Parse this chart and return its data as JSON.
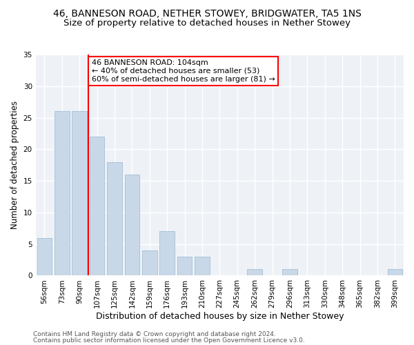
{
  "title1": "46, BANNESON ROAD, NETHER STOWEY, BRIDGWATER, TA5 1NS",
  "title2": "Size of property relative to detached houses in Nether Stowey",
  "xlabel": "Distribution of detached houses by size in Nether Stowey",
  "ylabel": "Number of detached properties",
  "categories": [
    "56sqm",
    "73sqm",
    "90sqm",
    "107sqm",
    "125sqm",
    "142sqm",
    "159sqm",
    "176sqm",
    "193sqm",
    "210sqm",
    "227sqm",
    "245sqm",
    "262sqm",
    "279sqm",
    "296sqm",
    "313sqm",
    "330sqm",
    "348sqm",
    "365sqm",
    "382sqm",
    "399sqm"
  ],
  "values": [
    6,
    26,
    26,
    22,
    18,
    16,
    4,
    7,
    3,
    3,
    0,
    0,
    1,
    0,
    1,
    0,
    0,
    0,
    0,
    0,
    1
  ],
  "bar_color": "#c8d8e8",
  "bar_edge_color": "#aac4d8",
  "property_line_x": 2.5,
  "annotation_text": "46 BANNESON ROAD: 104sqm\n← 40% of detached houses are smaller (53)\n60% of semi-detached houses are larger (81) →",
  "annotation_box_color": "white",
  "annotation_box_edge_color": "red",
  "vline_color": "red",
  "ylim": [
    0,
    35
  ],
  "yticks": [
    0,
    5,
    10,
    15,
    20,
    25,
    30,
    35
  ],
  "footer1": "Contains HM Land Registry data © Crown copyright and database right 2024.",
  "footer2": "Contains public sector information licensed under the Open Government Licence v3.0.",
  "background_color": "#eef2f7",
  "grid_color": "#ffffff",
  "title1_fontsize": 10,
  "title2_fontsize": 9.5,
  "xlabel_fontsize": 9,
  "ylabel_fontsize": 8.5,
  "tick_fontsize": 7.5,
  "annotation_fontsize": 8,
  "footer_fontsize": 6.5
}
